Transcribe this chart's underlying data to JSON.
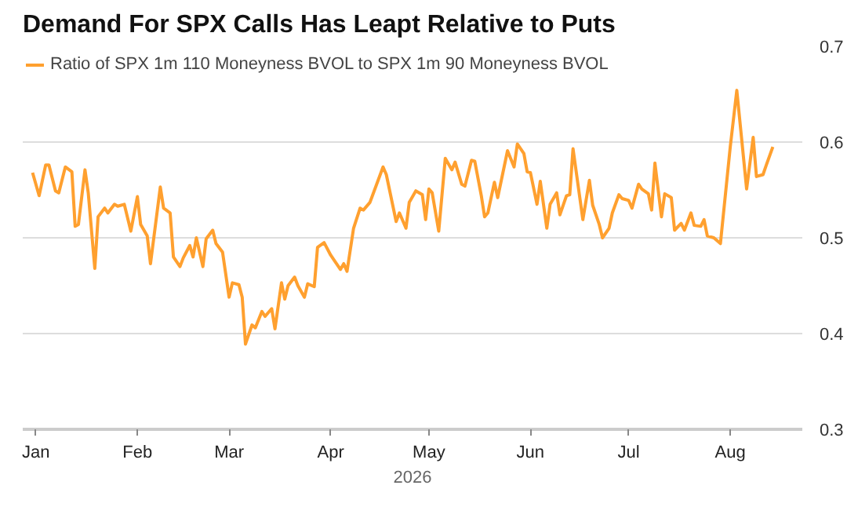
{
  "chart_data": {
    "type": "line",
    "title": "Demand For SPX Calls Has Leapt Relative to Puts",
    "xlabel": "2026",
    "x": [
      "2025-12-31",
      "2026-01-02",
      "2026-01-04",
      "2026-01-05",
      "2026-01-07",
      "2026-01-08",
      "2026-01-10",
      "2026-01-12",
      "2026-01-13",
      "2026-01-14",
      "2026-01-16",
      "2026-01-17",
      "2026-01-19",
      "2026-01-20",
      "2026-01-22",
      "2026-01-23",
      "2026-01-25",
      "2026-01-26",
      "2026-01-28",
      "2026-01-30",
      "2026-02-01",
      "2026-02-02",
      "2026-02-04",
      "2026-02-05",
      "2026-02-08",
      "2026-02-09",
      "2026-02-11",
      "2026-02-12",
      "2026-02-14",
      "2026-02-15",
      "2026-02-17",
      "2026-02-18",
      "2026-02-19",
      "2026-02-21",
      "2026-02-22",
      "2026-02-24",
      "2026-02-25",
      "2026-02-27",
      "2026-03-01",
      "2026-03-02",
      "2026-03-04",
      "2026-03-05",
      "2026-03-06",
      "2026-03-08",
      "2026-03-09",
      "2026-03-11",
      "2026-03-12",
      "2026-03-14",
      "2026-03-15",
      "2026-03-17",
      "2026-03-18",
      "2026-03-19",
      "2026-03-21",
      "2026-03-22",
      "2026-03-24",
      "2026-03-25",
      "2026-03-27",
      "2026-03-28",
      "2026-03-30",
      "2026-04-01",
      "2026-04-02",
      "2026-04-04",
      "2026-04-05",
      "2026-04-06",
      "2026-04-08",
      "2026-04-10",
      "2026-04-11",
      "2026-04-13",
      "2026-04-17",
      "2026-04-18",
      "2026-04-21",
      "2026-04-22",
      "2026-04-24",
      "2026-04-25",
      "2026-04-27",
      "2026-04-29",
      "2026-04-30",
      "2026-05-01",
      "2026-05-02",
      "2026-05-04",
      "2026-05-06",
      "2026-05-08",
      "2026-05-09",
      "2026-05-11",
      "2026-05-12",
      "2026-05-14",
      "2026-05-15",
      "2026-05-17",
      "2026-05-18",
      "2026-05-19",
      "2026-05-21",
      "2026-05-22",
      "2026-05-25",
      "2026-05-27",
      "2026-05-28",
      "2026-05-30",
      "2026-05-31",
      "2026-06-01",
      "2026-06-03",
      "2026-06-04",
      "2026-06-06",
      "2026-06-07",
      "2026-06-09",
      "2026-06-10",
      "2026-06-12",
      "2026-06-13",
      "2026-06-14",
      "2026-06-17",
      "2026-06-19",
      "2026-06-20",
      "2026-06-22",
      "2026-06-23",
      "2026-06-25",
      "2026-06-26",
      "2026-06-28",
      "2026-06-29",
      "2026-07-01",
      "2026-07-02",
      "2026-07-04",
      "2026-07-05",
      "2026-07-07",
      "2026-07-08",
      "2026-07-09",
      "2026-07-11",
      "2026-07-12",
      "2026-07-14",
      "2026-07-15",
      "2026-07-17",
      "2026-07-18",
      "2026-07-20",
      "2026-07-21",
      "2026-07-23",
      "2026-07-24",
      "2026-07-25",
      "2026-07-27",
      "2026-07-29",
      "2026-08-01",
      "2026-08-03",
      "2026-08-06",
      "2026-08-08",
      "2026-08-09",
      "2026-08-11",
      "2026-08-12",
      "2026-08-14"
    ],
    "series": [
      {
        "name": "Ratio of SPX 1m 110 Moneyness BVOL to SPX 1m 90 Moneyness BVOL",
        "color": "#ffa02f",
        "values": [
          0.568,
          0.544,
          0.576,
          0.576,
          0.549,
          0.547,
          0.574,
          0.569,
          0.512,
          0.514,
          0.571,
          0.547,
          0.468,
          0.522,
          0.531,
          0.526,
          0.535,
          0.533,
          0.535,
          0.507,
          0.543,
          0.514,
          0.502,
          0.473,
          0.553,
          0.531,
          0.526,
          0.48,
          0.47,
          0.479,
          0.492,
          0.48,
          0.5,
          0.47,
          0.499,
          0.508,
          0.494,
          0.485,
          0.438,
          0.453,
          0.451,
          0.438,
          0.389,
          0.409,
          0.406,
          0.423,
          0.418,
          0.426,
          0.405,
          0.453,
          0.436,
          0.45,
          0.459,
          0.45,
          0.438,
          0.452,
          0.449,
          0.49,
          0.495,
          0.482,
          0.477,
          0.467,
          0.473,
          0.465,
          0.51,
          0.531,
          0.529,
          0.537,
          0.574,
          0.566,
          0.517,
          0.526,
          0.51,
          0.537,
          0.549,
          0.545,
          0.519,
          0.551,
          0.547,
          0.507,
          0.583,
          0.571,
          0.579,
          0.556,
          0.554,
          0.581,
          0.58,
          0.544,
          0.522,
          0.526,
          0.558,
          0.542,
          0.591,
          0.574,
          0.598,
          0.588,
          0.569,
          0.568,
          0.535,
          0.559,
          0.51,
          0.535,
          0.547,
          0.524,
          0.544,
          0.545,
          0.593,
          0.519,
          0.56,
          0.534,
          0.514,
          0.5,
          0.51,
          0.526,
          0.545,
          0.541,
          0.539,
          0.531,
          0.556,
          0.551,
          0.546,
          0.529,
          0.578,
          0.522,
          0.546,
          0.542,
          0.508,
          0.515,
          0.508,
          0.526,
          0.513,
          0.512,
          0.519,
          0.502,
          0.5,
          0.494,
          0.595,
          0.654,
          0.551,
          0.605,
          0.564,
          0.566,
          0.576,
          0.595
        ]
      }
    ],
    "xlim": [
      "2025-12-28",
      "2026-08-23"
    ],
    "xticks": [
      {
        "value": "2026-01-01",
        "label": "Jan"
      },
      {
        "value": "2026-02-01",
        "label": "Feb"
      },
      {
        "value": "2026-03-01",
        "label": "Mar"
      },
      {
        "value": "2026-04-01",
        "label": "Apr"
      },
      {
        "value": "2026-05-01",
        "label": "May"
      },
      {
        "value": "2026-06-01",
        "label": "Jun"
      },
      {
        "value": "2026-07-01",
        "label": "Jul"
      },
      {
        "value": "2026-08-01",
        "label": "Aug"
      }
    ],
    "ylim": [
      0.3,
      0.7
    ],
    "yticks": [
      0.3,
      0.4,
      0.5,
      0.6,
      0.7
    ],
    "grid": "y",
    "legend": "top left",
    "line_style": "solid"
  }
}
